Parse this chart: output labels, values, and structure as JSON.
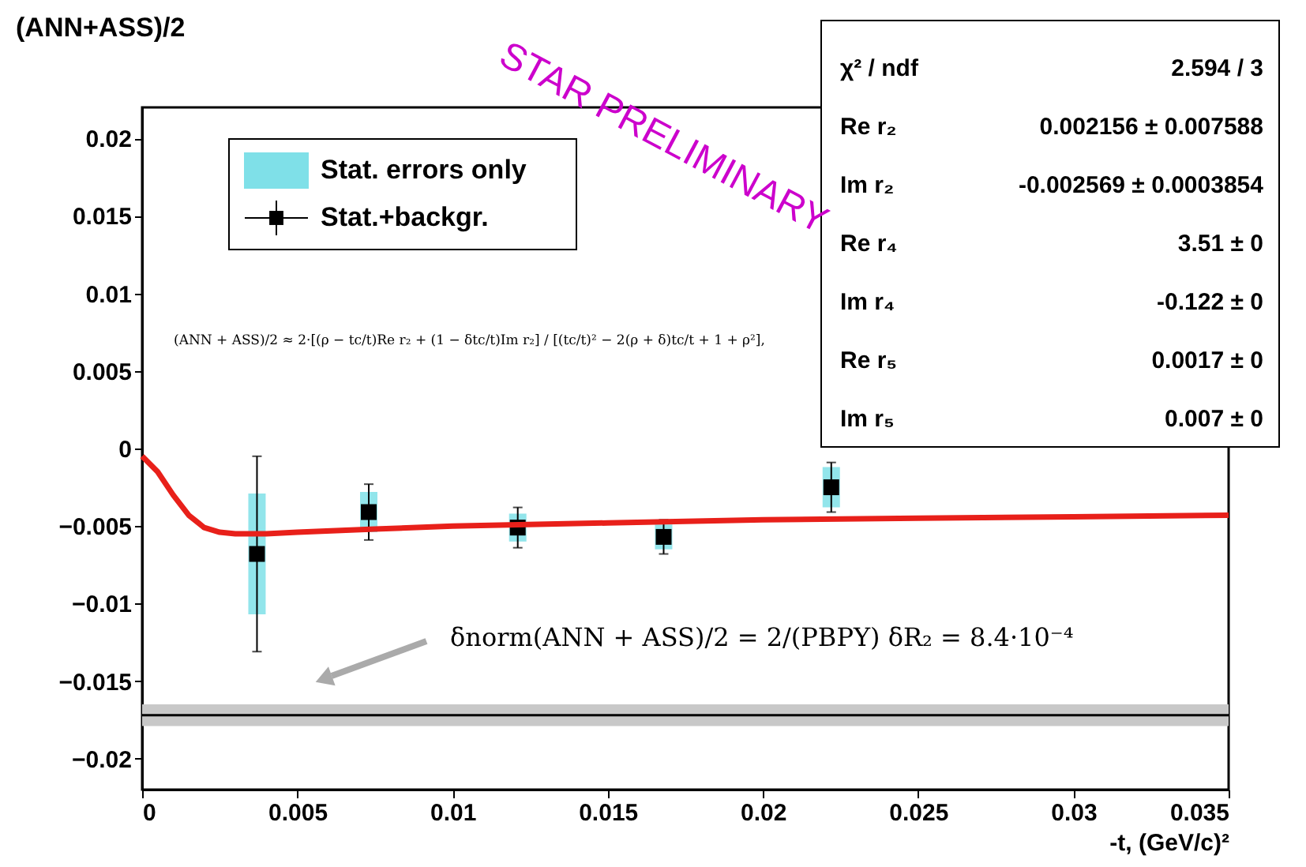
{
  "chart_data": {
    "type": "scatter",
    "xlabel": "-t, (GeV/c)²",
    "ylabel": "(ANN+ASS)/2",
    "xlim": [
      0,
      0.035
    ],
    "ylim": [
      -0.022,
      0.022
    ],
    "xticks": [
      0,
      0.005,
      0.01,
      0.015,
      0.02,
      0.025,
      0.03,
      0.035
    ],
    "yticks": [
      -0.02,
      -0.015,
      -0.01,
      -0.005,
      0,
      0.005,
      0.01,
      0.015,
      0.02
    ],
    "grid": false,
    "legend": "top left",
    "series": [
      {
        "name": "Stat. errors only",
        "type": "bar",
        "color": "#7fe0e8",
        "x": [
          0.0037,
          0.0073,
          0.0121,
          0.0168,
          0.0222
        ],
        "base": [
          -0.0107,
          -0.0054,
          -0.006,
          -0.0065,
          -0.0038
        ],
        "values": [
          0.0078,
          0.0026,
          0.0018,
          0.0016,
          0.0026
        ]
      },
      {
        "name": "Stat.+backgr.",
        "marker": "square",
        "color": "#000000",
        "x": [
          0.0037,
          0.0073,
          0.0121,
          0.0168,
          0.0222
        ],
        "values": [
          -0.0068,
          -0.0041,
          -0.0051,
          -0.0057,
          -0.0025
        ],
        "errors": [
          0.0063,
          0.0018,
          0.0013,
          0.0011,
          0.0016
        ]
      },
      {
        "type": "line",
        "color": "#e8201a",
        "line_style": "solid",
        "x": [
          0,
          0.0005,
          0.001,
          0.0015,
          0.002,
          0.0025,
          0.003,
          0.004,
          0.005,
          0.0075,
          0.01,
          0.015,
          0.02,
          0.025,
          0.03,
          0.035
        ],
        "values": [
          -0.0005,
          -0.0015,
          -0.003,
          -0.0043,
          -0.0051,
          -0.0054,
          -0.0055,
          -0.0055,
          -0.0054,
          -0.0052,
          -0.005,
          -0.0048,
          -0.0046,
          -0.0045,
          -0.0044,
          -0.0043
        ]
      }
    ],
    "bands": [
      {
        "axis": "y",
        "from": -0.0179,
        "to": -0.0165,
        "color": "#c8c8c8"
      }
    ],
    "ref_lines": [
      {
        "axis": "y",
        "value": -0.0172,
        "color": "#000000"
      }
    ],
    "annotations": [
      "(ANN + ASS)/2 ≈ 2·[(ρ − tc/t)Re r₂ + (1 − δtc/t)Im r₂] / [(tc/t)² − 2(ρ + δ)tc/t + 1 + ρ²],",
      "δnorm(ANN + ASS)/2 = 2/(PBPY) δR₂ = 8.4·10⁻⁴",
      "STAR PRELIMINARY",
      "χ² / ndf",
      "2.594 / 3",
      "Re r₂",
      "0.002156 ± 0.007588",
      "Im r₂",
      "-0.002569 ± 0.0003854",
      "Re r₄",
      "3.51 ±    0",
      "Im r₄",
      "-0.122 ±    0",
      "Re r₅",
      "0.0017 ±    0",
      "Im r₅",
      "0.007 ±    0"
    ]
  }
}
